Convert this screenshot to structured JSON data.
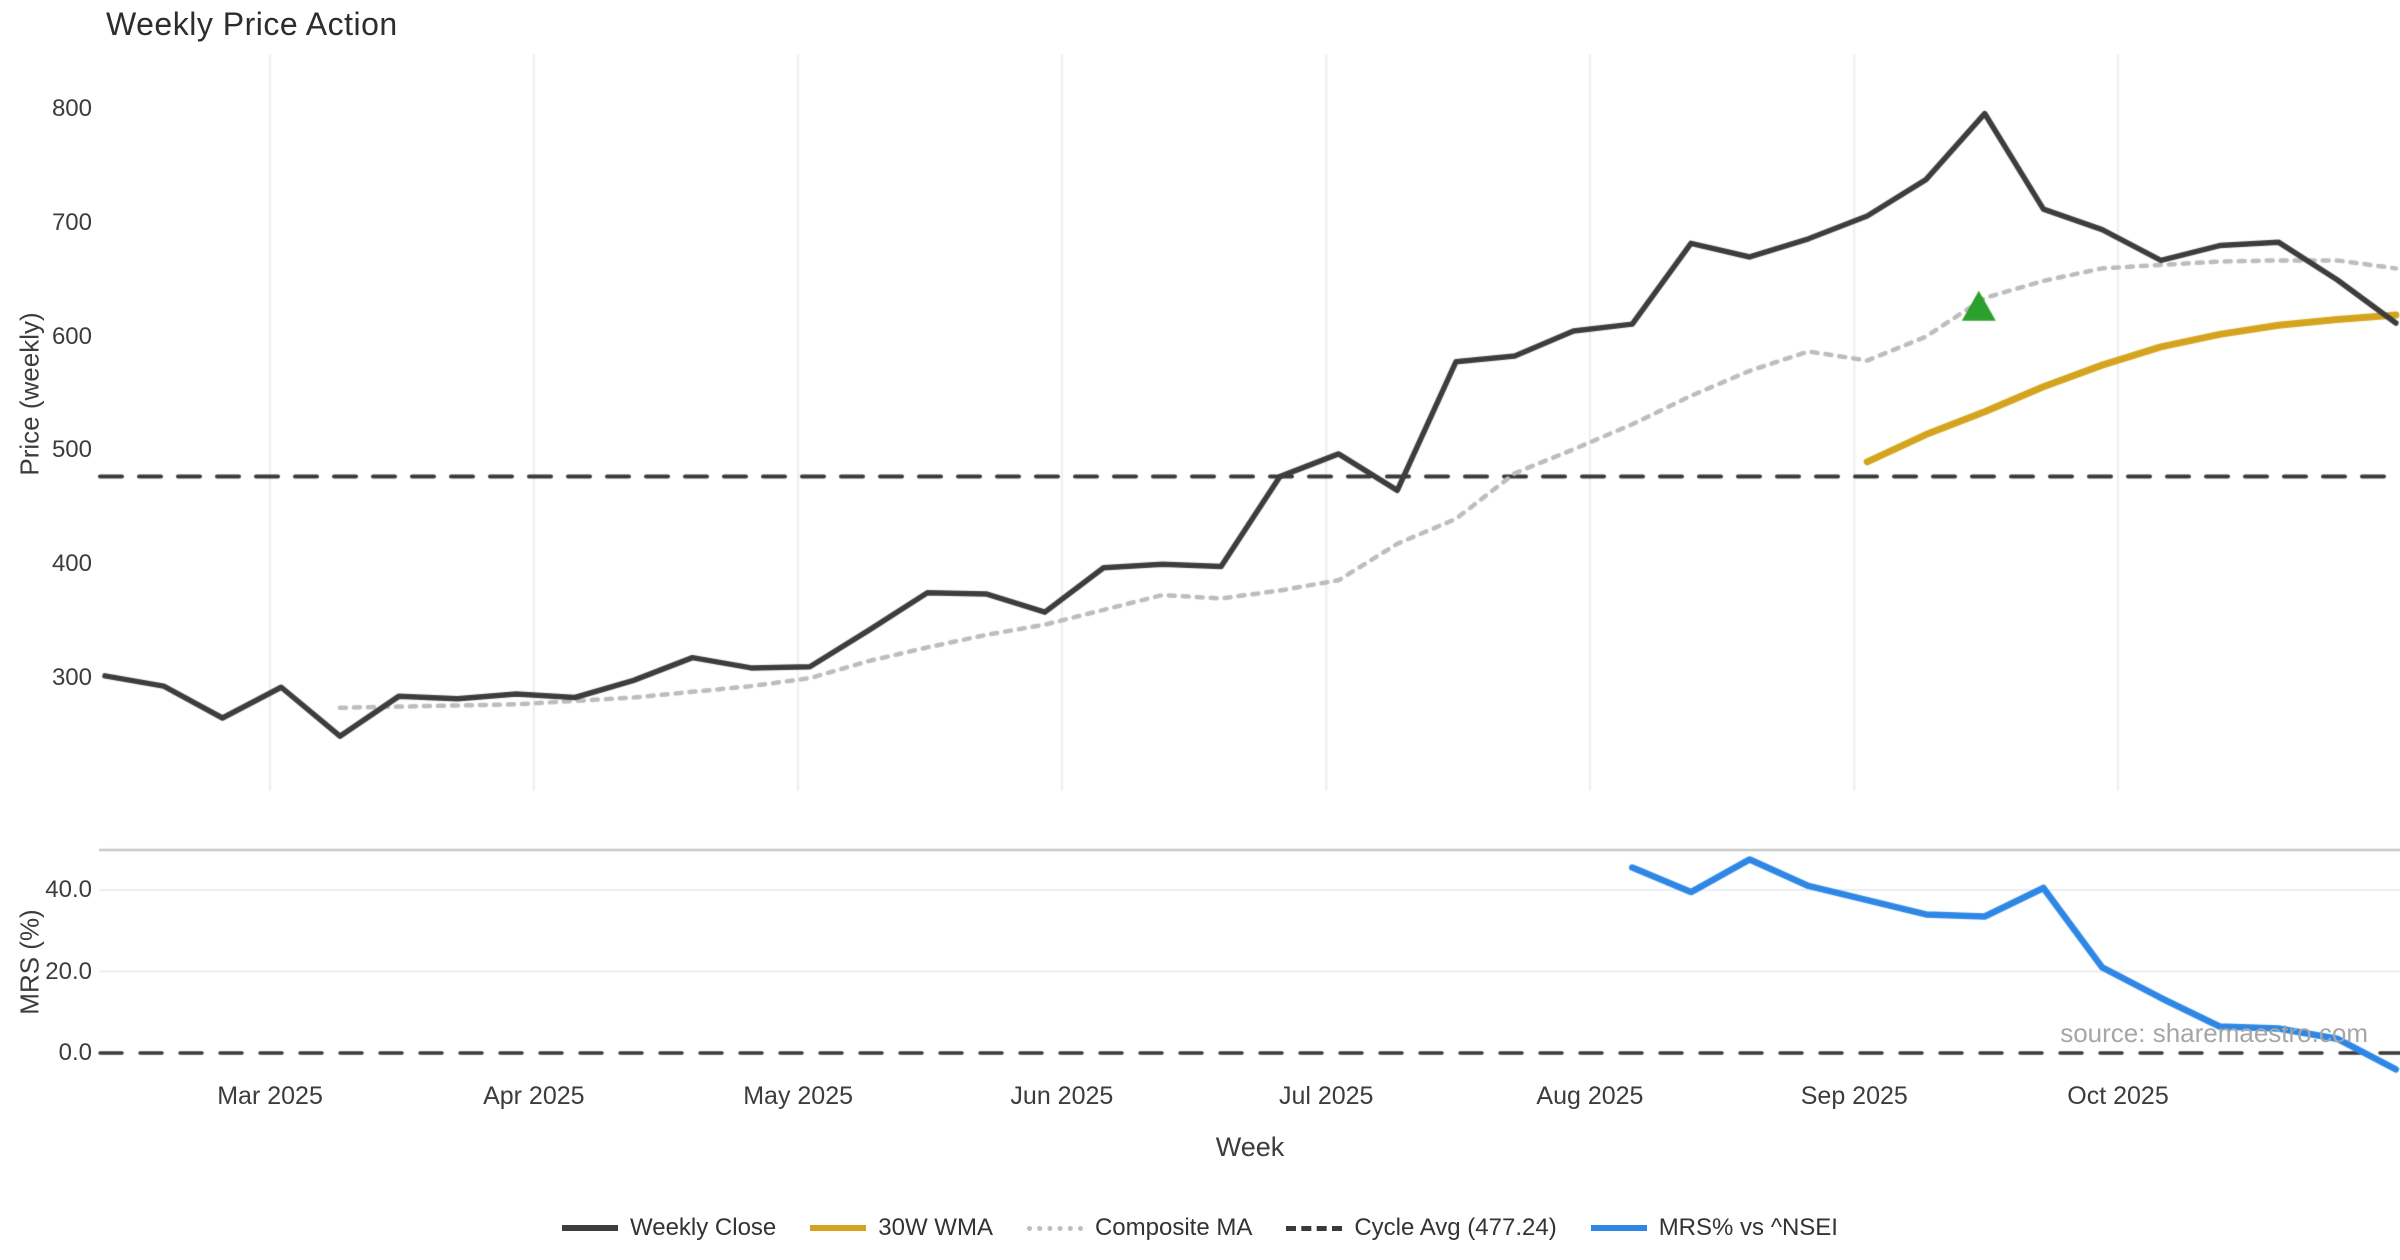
{
  "title": "Weekly Price Action",
  "axes": {
    "price_label": "Price (weekly)",
    "mrs_label": "MRS (%)",
    "x_label": "Week",
    "price_ticks": [
      800,
      700,
      600,
      500,
      400,
      300
    ],
    "mrs_ticks": [
      {
        "label": "40.0",
        "value": 40
      },
      {
        "label": "20.0",
        "value": 20
      },
      {
        "label": "0.0",
        "value": 0
      }
    ],
    "months": [
      {
        "label": "Mar 2025",
        "week_pos": 2.81
      },
      {
        "label": "Apr 2025",
        "week_pos": 7.3
      },
      {
        "label": "May 2025",
        "week_pos": 11.8
      },
      {
        "label": "Jun 2025",
        "week_pos": 16.29
      },
      {
        "label": "Jul 2025",
        "week_pos": 20.79
      },
      {
        "label": "Aug 2025",
        "week_pos": 25.28
      },
      {
        "label": "Sep 2025",
        "week_pos": 29.78
      },
      {
        "label": "Oct 2025",
        "week_pos": 34.27
      }
    ]
  },
  "source_note": "source: sharemaestro.com",
  "colors": {
    "weekly_close": "#3d3d3d",
    "wma30": "#d5a41e",
    "composite_ma": "#bdbdbd",
    "cycle_avg": "#3a3a3a",
    "mrs": "#2f87e5",
    "marker_green": "#2ca02c",
    "gridline": "#ebedf3",
    "panel_border": "#c8c8c8",
    "zero_dash": "#3a3a3a"
  },
  "legend": [
    {
      "name": "weekly-close",
      "label": "Weekly Close",
      "color": "#3d3d3d",
      "style": "solid"
    },
    {
      "name": "wma-30w",
      "label": "30W WMA",
      "color": "#d5a41e",
      "style": "solid"
    },
    {
      "name": "composite-ma",
      "label": "Composite MA",
      "color": "#bdbdbd",
      "style": "dotted"
    },
    {
      "name": "cycle-avg",
      "label": "Cycle Avg (477.24)",
      "color": "#3a3a3a",
      "style": "dashed"
    },
    {
      "name": "mrs-vs-nsei",
      "label": "MRS% vs ^NSEI",
      "color": "#2f87e5",
      "style": "solid"
    }
  ],
  "chart_data": [
    {
      "panel": "price",
      "type": "line",
      "title": "Weekly Price Action",
      "ylabel": "Price (weekly)",
      "x_unit": "week_index",
      "ylim": [
        200,
        848
      ],
      "yticks": [
        300,
        400,
        500,
        600,
        700,
        800
      ],
      "grid": "vertical-months-only",
      "cycle_avg_value": 477.24,
      "series": [
        {
          "name": "Weekly Close",
          "style": "solid",
          "start_week": 0,
          "values": [
            302,
            293,
            265,
            292,
            249,
            284,
            282,
            286,
            283,
            298,
            318,
            309,
            310,
            342,
            375,
            374,
            358,
            397,
            400,
            398,
            477,
            497,
            465,
            578,
            583,
            605,
            611,
            682,
            670,
            686,
            706,
            738,
            796,
            712,
            694,
            667,
            680,
            683,
            650,
            612
          ]
        },
        {
          "name": "Composite MA",
          "style": "dotted",
          "start_week": 4,
          "values": [
            274,
            275,
            276,
            277,
            280,
            283,
            288,
            293,
            300,
            315,
            327,
            338,
            347,
            360,
            373,
            370,
            377,
            386,
            418,
            440,
            480,
            501,
            523,
            548,
            570,
            587,
            579,
            600,
            634,
            649,
            660,
            663,
            666,
            667,
            667,
            660
          ]
        },
        {
          "name": "30W WMA",
          "style": "solid",
          "start_week": 30,
          "values": [
            490,
            514,
            534,
            556,
            575,
            591,
            602,
            610,
            615,
            619
          ]
        }
      ],
      "marker": {
        "shape": "triangle-up",
        "week_index": 31.9,
        "price": 614,
        "color": "#2ca02c"
      }
    },
    {
      "panel": "mrs",
      "type": "line",
      "ylabel": "MRS (%)",
      "x_unit": "week_index",
      "ylim": [
        -10,
        50
      ],
      "yticks": [
        0.0,
        20.0,
        40.0
      ],
      "zero_line": 0,
      "series": [
        {
          "name": "MRS% vs ^NSEI",
          "style": "solid",
          "start_week": 26,
          "values": [
            45.5,
            39.5,
            47.5,
            41.0,
            37.5,
            34.0,
            33.5,
            40.5,
            21.0,
            13.5,
            6.5,
            6.0,
            3.5,
            -4.0
          ]
        }
      ]
    }
  ]
}
